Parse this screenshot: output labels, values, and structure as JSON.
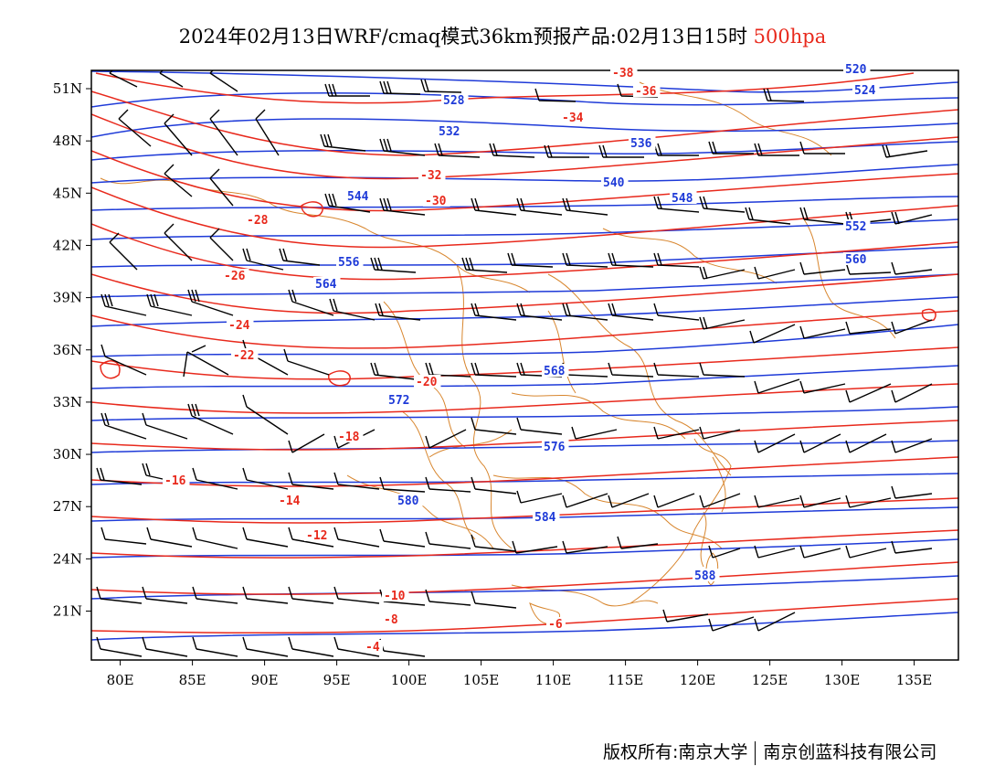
{
  "header": {
    "title": "2024年02月13日WRF/cmaq模式36km预报产品:02月13日15时",
    "level": "500hpa"
  },
  "footer": {
    "copyright": "版权所有:南京大学",
    "company": "南京创蓝科技有限公司"
  },
  "axes": {
    "lon_labels": [
      "80E",
      "85E",
      "90E",
      "95E",
      "100E",
      "105E",
      "110E",
      "115E",
      "120E",
      "125E",
      "130E",
      "135E"
    ],
    "lat_labels": [
      "51N",
      "48N",
      "45N",
      "42N",
      "39N",
      "36N",
      "33N",
      "30N",
      "27N",
      "24N",
      "21N"
    ]
  },
  "colors": {
    "height": "#1e3ad8",
    "temperature": "#e8291c",
    "boundaries": "#d8862e",
    "wind": "#000000",
    "level_label": "#e8291c"
  },
  "geopotential_height_contours": [
    "520",
    "524",
    "528",
    "532",
    "536",
    "540",
    "544",
    "548",
    "552",
    "556",
    "560",
    "564",
    "568",
    "572",
    "576",
    "580",
    "584",
    "588"
  ],
  "temperature_contours": [
    "-38",
    "-36",
    "-34",
    "-32",
    "-30",
    "-28",
    "-26",
    "-24",
    "-22",
    "-20",
    "-18",
    "-16",
    "-14",
    "-12",
    "-10",
    "-8",
    "-6",
    "-4"
  ]
}
